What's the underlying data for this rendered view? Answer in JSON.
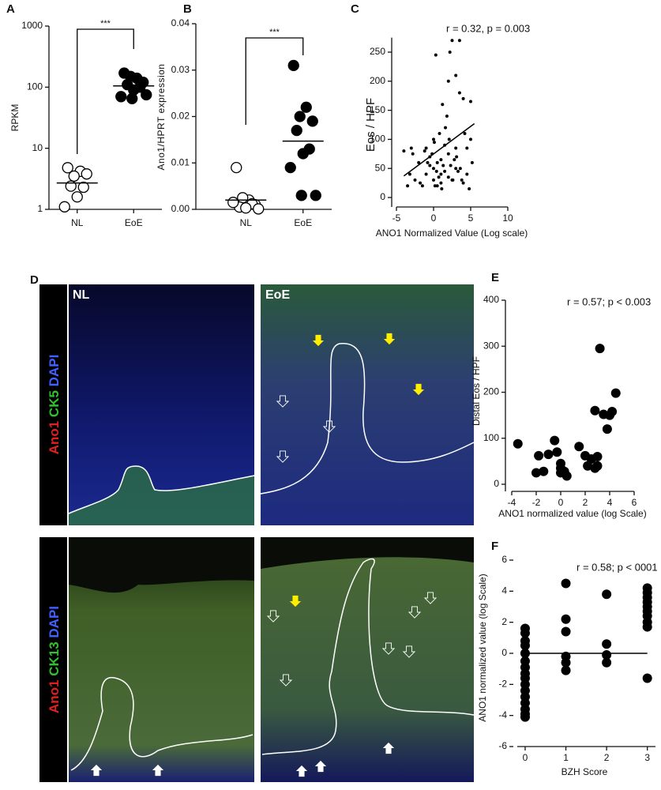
{
  "panel_labels": [
    "A",
    "B",
    "C",
    "D",
    "E",
    "F"
  ],
  "panel_d": {
    "columns": [
      "NL",
      "EoE"
    ],
    "stain_rows": [
      [
        "Ano1",
        "CK5",
        "DAPI"
      ],
      [
        "Ano1",
        "CK13",
        "DAPI"
      ]
    ]
  },
  "chart_data": [
    {
      "type": "strip",
      "y_label": "RPKM",
      "log_scale": true,
      "ylim": [
        1,
        1000
      ],
      "yticks": [
        1,
        10,
        100,
        1000
      ],
      "significance": "***",
      "groups": [
        {
          "name": "NL",
          "marker": "open",
          "values": [
            4.8,
            4.2,
            3.5,
            3.8,
            2.4,
            2.3,
            1.6,
            1.1
          ],
          "mean": 2.7
        },
        {
          "name": "EoE",
          "marker": "filled",
          "values": [
            170,
            140,
            150,
            120,
            110,
            100,
            90,
            70,
            75,
            65
          ],
          "mean": 105
        }
      ]
    },
    {
      "type": "strip",
      "y_label": "Ano1/HPRT expression",
      "log_scale": false,
      "ylim": [
        0,
        0.04
      ],
      "yticks": [
        {
          "value": 0,
          "label": "0.00"
        },
        {
          "value": 0.01,
          "label": "0.01"
        },
        {
          "value": 0.02,
          "label": "0.02"
        },
        {
          "value": 0.03,
          "label": "0.03"
        },
        {
          "value": 0.04,
          "label": "0.04"
        }
      ],
      "significance": "***",
      "groups": [
        {
          "name": "NL",
          "marker": "open",
          "values": [
            0.009,
            0.002,
            0.0025,
            0.001,
            0.0005,
            0.0012,
            0.0003,
            0.0015,
            0.0001
          ],
          "mean": 0.002
        },
        {
          "name": "EoE",
          "marker": "filled",
          "values": [
            0.031,
            0.022,
            0.02,
            0.019,
            0.017,
            0.013,
            0.012,
            0.009,
            0.003,
            0.003
          ],
          "mean": 0.0147
        }
      ]
    },
    {
      "type": "scatter",
      "annotation": "r = 0.32, p = 0.003",
      "x_label": "ANO1 Normalized Value (Log scale)",
      "y_label": "Eos / HPF",
      "xlim": [
        -5,
        10
      ],
      "xticks": [
        -5,
        0,
        5,
        10
      ],
      "ylim": [
        0,
        275
      ],
      "yticks": [
        0,
        50,
        100,
        150,
        200,
        250
      ],
      "points": {
        "x": [
          -4,
          -3.5,
          -3,
          -2.5,
          -2,
          -1.5,
          -1,
          -1,
          -0.5,
          -0.5,
          0,
          0,
          0,
          0.3,
          0.5,
          0.5,
          0.8,
          1,
          1,
          1,
          1.2,
          1.5,
          1.5,
          2,
          2,
          2,
          2.3,
          2.5,
          2.5,
          3,
          3,
          3,
          3.5,
          3.5,
          4,
          4,
          4.5,
          4.5,
          5,
          5,
          5.2,
          -3.2,
          -2.8,
          -1.8,
          -1.2,
          -0.8,
          0.2,
          0.7,
          1.3,
          1.8,
          2.2,
          2.8,
          3.3,
          3.8,
          4.2,
          4.8,
          0.1,
          1.6,
          2.6,
          3.1,
          0.4,
          1.1,
          -0.2,
          2.1,
          3.6
        ],
        "y": [
          80,
          20,
          85,
          30,
          60,
          20,
          85,
          40,
          55,
          70,
          100,
          50,
          30,
          245,
          20,
          60,
          110,
          65,
          40,
          25,
          160,
          45,
          90,
          75,
          35,
          200,
          55,
          270,
          30,
          50,
          85,
          210,
          270,
          180,
          25,
          170,
          40,
          85,
          100,
          165,
          60,
          40,
          75,
          25,
          80,
          60,
          20,
          35,
          55,
          140,
          250,
          65,
          45,
          30,
          110,
          15,
          95,
          120,
          30,
          70,
          45,
          15,
          75,
          100,
          50
        ]
      },
      "fit_line": {
        "x": [
          -4,
          5.5
        ],
        "y": [
          37,
          127
        ]
      }
    },
    {
      "type": "scatter",
      "annotation": "r = 0.57;  p  <  0.003",
      "x_label": "ANO1 normalized value (log Scale)",
      "y_label": "Distal Eos / HPF",
      "xlim": [
        -4,
        6
      ],
      "xticks": [
        -4,
        -2,
        0,
        2,
        4,
        6
      ],
      "ylim": [
        0,
        400
      ],
      "yticks": [
        0,
        100,
        200,
        300,
        400
      ],
      "points": {
        "x": [
          -3.5,
          -2,
          -1.8,
          -1.4,
          -1,
          -0.5,
          -0.3,
          0,
          0,
          0,
          0.3,
          0.5,
          1.5,
          2,
          2.2,
          2.5,
          2.8,
          3,
          3,
          2.8,
          3.2,
          3.5,
          3.8,
          4,
          4.2,
          4.5
        ],
        "y": [
          88,
          25,
          62,
          28,
          65,
          95,
          70,
          45,
          35,
          25,
          28,
          18,
          82,
          62,
          40,
          55,
          35,
          40,
          60,
          160,
          295,
          152,
          120,
          150,
          158,
          198
        ]
      }
    },
    {
      "type": "scatter",
      "annotation": "r = 0.58; p < 0001",
      "x_label": "BZH Score",
      "y_label": "ANO1 normalized value (log Scale)",
      "xlim": [
        -0.3,
        3.2
      ],
      "xticks": [
        0,
        1,
        2,
        3
      ],
      "ylim": [
        -6,
        6
      ],
      "yticks": [
        -6,
        -4,
        -2,
        0,
        2,
        4,
        6
      ],
      "points": {
        "x": [
          0,
          0,
          0,
          0,
          0,
          0,
          0,
          0,
          0,
          0,
          0,
          0,
          0,
          0,
          0,
          0,
          1,
          1,
          1,
          1,
          1,
          1,
          2,
          2,
          2,
          2,
          3,
          3,
          3,
          3,
          3,
          3,
          3,
          3,
          3,
          3
        ],
        "y": [
          1.6,
          1.3,
          0.8,
          0.5,
          0,
          -0.5,
          -0.9,
          -1.3,
          -1.6,
          -2,
          -2.4,
          -2.8,
          -3.2,
          -3.6,
          -3.9,
          -4.1,
          4.5,
          2.2,
          1.4,
          -0.2,
          -0.6,
          -1.1,
          3.8,
          0.6,
          -0.1,
          -0.6,
          4.2,
          3.9,
          3.6,
          3.3,
          3,
          2.7,
          2.4,
          2,
          1.7,
          -1.6
        ]
      },
      "fit_line": {
        "x": [
          0,
          3
        ],
        "y": [
          0,
          0
        ]
      }
    }
  ]
}
